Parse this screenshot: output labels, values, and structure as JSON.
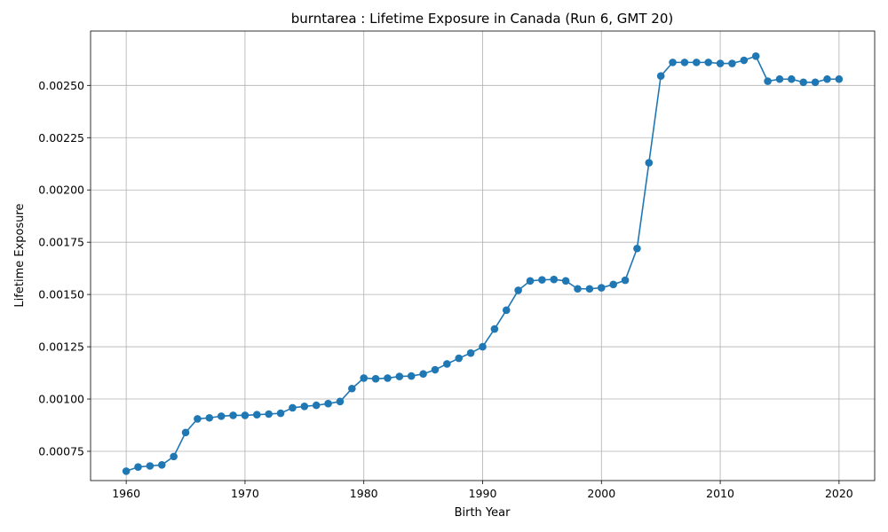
{
  "chart_data": {
    "type": "line",
    "title": "burntarea : Lifetime Exposure in Canada (Run 6, GMT 20)",
    "xlabel": "Birth Year",
    "ylabel": "Lifetime Exposure",
    "xlim": [
      1957,
      2023
    ],
    "ylim": [
      0.00061,
      0.00276
    ],
    "xticks": [
      1960,
      1970,
      1980,
      1990,
      2000,
      2010,
      2020
    ],
    "xtick_labels": [
      "1960",
      "1970",
      "1980",
      "1990",
      "2000",
      "2010",
      "2020"
    ],
    "yticks": [
      0.00075,
      0.001,
      0.00125,
      0.0015,
      0.00175,
      0.002,
      0.00225,
      0.0025
    ],
    "ytick_labels": [
      "0.00075",
      "0.00100",
      "0.00125",
      "0.00150",
      "0.00175",
      "0.00200",
      "0.00225",
      "0.00250"
    ],
    "grid": true,
    "color": "#1f77b4",
    "series": [
      {
        "x": [
          1960,
          1961,
          1962,
          1963,
          1964,
          1965,
          1966,
          1967,
          1968,
          1969,
          1970,
          1971,
          1972,
          1973,
          1974,
          1975,
          1976,
          1977,
          1978,
          1979,
          1980,
          1981,
          1982,
          1983,
          1984,
          1985,
          1986,
          1987,
          1988,
          1989,
          1990,
          1991,
          1992,
          1993,
          1994,
          1995,
          1996,
          1997,
          1998,
          1999,
          2000,
          2001,
          2002,
          2003,
          2004,
          2005,
          2006,
          2007,
          2008,
          2009,
          2010,
          2011,
          2012,
          2013,
          2014,
          2015,
          2016,
          2017,
          2018,
          2019,
          2020
        ],
        "values": [
          0.000655,
          0.000675,
          0.00068,
          0.000685,
          0.000725,
          0.00084,
          0.000905,
          0.00091,
          0.000918,
          0.000922,
          0.000922,
          0.000925,
          0.000928,
          0.000932,
          0.000958,
          0.000965,
          0.00097,
          0.000978,
          0.000988,
          0.00105,
          0.0011,
          0.001097,
          0.0011,
          0.001108,
          0.00111,
          0.00112,
          0.00114,
          0.001168,
          0.001195,
          0.00122,
          0.00125,
          0.001335,
          0.001425,
          0.00152,
          0.001565,
          0.00157,
          0.001572,
          0.001565,
          0.001527,
          0.001527,
          0.001532,
          0.001548,
          0.001568,
          0.00172,
          0.00213,
          0.002545,
          0.00261,
          0.00261,
          0.00261,
          0.00261,
          0.002605,
          0.002605,
          0.00262,
          0.00264,
          0.00252,
          0.00253,
          0.00253,
          0.002515,
          0.002515,
          0.00253,
          0.00253
        ]
      }
    ]
  }
}
